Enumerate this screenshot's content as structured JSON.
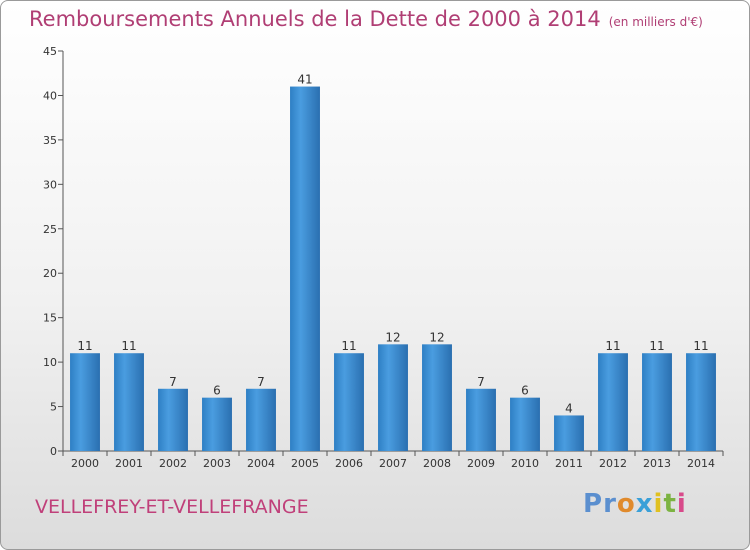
{
  "header": {
    "title": "Remboursements Annuels de la Dette de 2000 à 2014",
    "subtitle": "(en milliers d'€)"
  },
  "footer": {
    "commune": "VELLEFREY-ET-VELLEFRANGE",
    "logo_text": "Proxiti",
    "logo_colors": [
      "#5b8fcf",
      "#5b8fcf",
      "#e08a2c",
      "#3aa0d8",
      "#e0c020",
      "#7cb342",
      "#d84a8a"
    ]
  },
  "chart_data": {
    "type": "bar",
    "title": "Remboursements Annuels de la Dette de 2000 à 2014",
    "subtitle": "(en milliers d'€)",
    "categories": [
      "2000",
      "2001",
      "2002",
      "2003",
      "2004",
      "2005",
      "2006",
      "2007",
      "2008",
      "2009",
      "2010",
      "2011",
      "2012",
      "2013",
      "2014"
    ],
    "values": [
      11,
      11,
      7,
      6,
      7,
      41,
      11,
      12,
      12,
      7,
      6,
      4,
      11,
      11,
      11
    ],
    "ylim": [
      0,
      45
    ],
    "yticks": [
      0,
      5,
      10,
      15,
      20,
      25,
      30,
      35,
      40,
      45
    ],
    "grid": false,
    "bar_color": "#3d8fd6",
    "bar_color_dark": "#2a6fb0",
    "axis_color": "#555555"
  }
}
